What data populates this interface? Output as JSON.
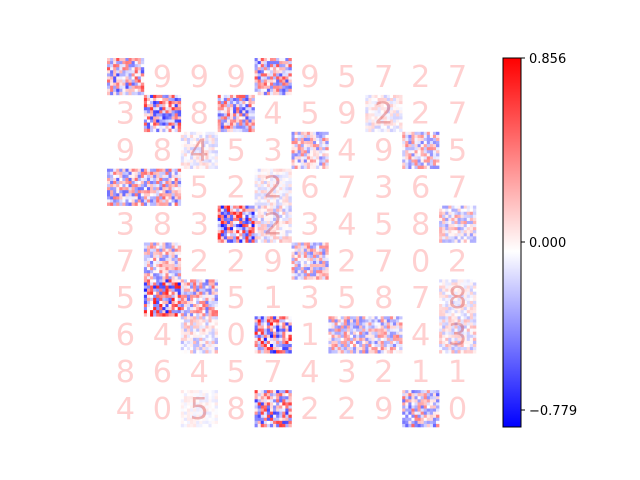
{
  "chart_data": {
    "type": "heatmap",
    "grid_rows": 10,
    "grid_cols": 10,
    "colormap": "bwr",
    "colors": {
      "negative": "#0000ff",
      "zero": "#ffffff",
      "positive": "#ff0000",
      "digit_tint": "#ffd0d0"
    },
    "vmin": -0.779,
    "vmax": 0.856,
    "colorbar": {
      "ticks": [
        0.856,
        0.0,
        -0.779
      ],
      "tick_labels": [
        "0.856",
        "0.000",
        "−0.779"
      ]
    },
    "digits": [
      [
        "",
        "9",
        "9",
        "9",
        "",
        "9",
        "5",
        "7",
        "2",
        "7"
      ],
      [
        "3",
        "",
        "8",
        "",
        "4",
        "5",
        "9",
        "2",
        "2",
        "7"
      ],
      [
        "9",
        "8",
        "4",
        "5",
        "3",
        "",
        "4",
        "9",
        "",
        "5"
      ],
      [
        "",
        "",
        "5",
        "2",
        "2",
        "6",
        "7",
        "3",
        "6",
        "7"
      ],
      [
        "3",
        "8",
        "3",
        "",
        "2",
        "3",
        "4",
        "5",
        "8",
        ""
      ],
      [
        "7",
        "",
        "2",
        "2",
        "9",
        "",
        "2",
        "7",
        "0",
        "2"
      ],
      [
        "5",
        "",
        "",
        "5",
        "1",
        "3",
        "5",
        "8",
        "7",
        "8"
      ],
      [
        "6",
        "4",
        "",
        "0",
        "",
        "1",
        "",
        "",
        "4",
        "3"
      ],
      [
        "8",
        "6",
        "4",
        "5",
        "7",
        "4",
        "3",
        "2",
        "1",
        "1"
      ],
      [
        "4",
        "0",
        "5",
        "8",
        "",
        "2",
        "2",
        "9",
        "",
        "0"
      ]
    ],
    "noise_intensity": [
      [
        0.7,
        0,
        0,
        0,
        0.7,
        0,
        0,
        0,
        0,
        0
      ],
      [
        0,
        0.8,
        0,
        0.7,
        0,
        0,
        0,
        0.2,
        0,
        0
      ],
      [
        0,
        0,
        0.2,
        0,
        0,
        0.5,
        0,
        0,
        0.5,
        0
      ],
      [
        0.6,
        0.6,
        0,
        0,
        0.2,
        0,
        0,
        0,
        0,
        0
      ],
      [
        0,
        0,
        0,
        0.9,
        0.3,
        0,
        0,
        0,
        0,
        0.4
      ],
      [
        0,
        0.5,
        0,
        0,
        0,
        0.5,
        0,
        0,
        0,
        0
      ],
      [
        0,
        0.9,
        0.6,
        0,
        0,
        0,
        0,
        0,
        0,
        0.2
      ],
      [
        0,
        0,
        0.3,
        0,
        0.9,
        0,
        0.5,
        0.5,
        0,
        0.3
      ],
      [
        0,
        0,
        0,
        0,
        0,
        0,
        0,
        0,
        0,
        0
      ],
      [
        0,
        0,
        0.1,
        0,
        0.8,
        0,
        0,
        0,
        0.6,
        0
      ]
    ],
    "grid": false
  }
}
